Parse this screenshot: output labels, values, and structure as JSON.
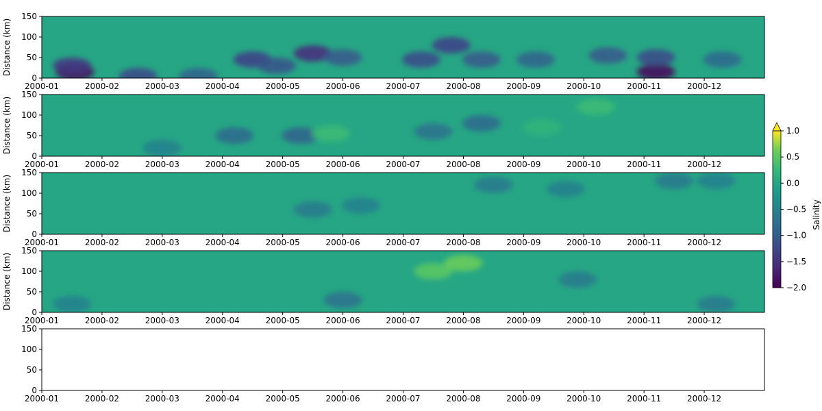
{
  "chart_data": {
    "type": "heatmap",
    "title": "",
    "xlabel": "",
    "x_ticks": [
      "2000-01",
      "2000-02",
      "2000-03",
      "2000-04",
      "2000-05",
      "2000-06",
      "2000-07",
      "2000-08",
      "2000-09",
      "2000-10",
      "2000-11",
      "2000-12"
    ],
    "x_tick_month_index": [
      0,
      1,
      2,
      3,
      4,
      5,
      6,
      7,
      8,
      9,
      10,
      11
    ],
    "x_range_months": [
      0,
      12
    ],
    "ylabel": "Distance (km)",
    "y_ticks": [
      0,
      50,
      100,
      150
    ],
    "y_range": [
      0,
      150
    ],
    "panels": [
      {
        "name": "panel-1",
        "has_data": true,
        "background_value": 0.0,
        "features": [
          {
            "month": 0.55,
            "km": 15,
            "value": -1.9
          },
          {
            "month": 0.5,
            "km": 30,
            "value": -1.4
          },
          {
            "month": 1.6,
            "km": 5,
            "value": -1.2
          },
          {
            "month": 2.6,
            "km": 5,
            "value": -0.9
          },
          {
            "month": 3.5,
            "km": 45,
            "value": -1.3
          },
          {
            "month": 3.9,
            "km": 30,
            "value": -1.1
          },
          {
            "month": 4.5,
            "km": 60,
            "value": -1.5
          },
          {
            "month": 5.0,
            "km": 50,
            "value": -1.0
          },
          {
            "month": 6.3,
            "km": 45,
            "value": -1.2
          },
          {
            "month": 6.8,
            "km": 80,
            "value": -1.3
          },
          {
            "month": 7.3,
            "km": 45,
            "value": -1.0
          },
          {
            "month": 8.2,
            "km": 45,
            "value": -0.9
          },
          {
            "month": 9.4,
            "km": 55,
            "value": -1.0
          },
          {
            "month": 10.2,
            "km": 15,
            "value": -1.9
          },
          {
            "month": 10.2,
            "km": 50,
            "value": -1.2
          },
          {
            "month": 11.3,
            "km": 45,
            "value": -0.8
          }
        ]
      },
      {
        "name": "panel-2",
        "has_data": true,
        "background_value": 0.0,
        "features": [
          {
            "month": 3.2,
            "km": 50,
            "value": -0.8
          },
          {
            "month": 4.3,
            "km": 50,
            "value": -0.9
          },
          {
            "month": 4.8,
            "km": 55,
            "value": 0.3
          },
          {
            "month": 6.5,
            "km": 60,
            "value": -0.7
          },
          {
            "month": 7.3,
            "km": 80,
            "value": -0.8
          },
          {
            "month": 8.3,
            "km": 70,
            "value": 0.2
          },
          {
            "month": 9.2,
            "km": 120,
            "value": 0.3
          },
          {
            "month": 2.0,
            "km": 20,
            "value": -0.5
          }
        ]
      },
      {
        "name": "panel-3",
        "has_data": true,
        "background_value": 0.0,
        "features": [
          {
            "month": 4.5,
            "km": 60,
            "value": -0.6
          },
          {
            "month": 5.3,
            "km": 70,
            "value": -0.5
          },
          {
            "month": 7.5,
            "km": 120,
            "value": -0.6
          },
          {
            "month": 8.7,
            "km": 110,
            "value": -0.5
          },
          {
            "month": 10.5,
            "km": 130,
            "value": -0.6
          },
          {
            "month": 11.2,
            "km": 130,
            "value": -0.5
          }
        ]
      },
      {
        "name": "panel-4",
        "has_data": true,
        "background_value": 0.0,
        "features": [
          {
            "month": 0.5,
            "km": 20,
            "value": -0.5
          },
          {
            "month": 5.0,
            "km": 30,
            "value": -0.7
          },
          {
            "month": 6.5,
            "km": 100,
            "value": 0.5
          },
          {
            "month": 7.0,
            "km": 120,
            "value": 0.6
          },
          {
            "month": 8.9,
            "km": 80,
            "value": -0.6
          },
          {
            "month": 11.2,
            "km": 20,
            "value": -0.6
          }
        ]
      },
      {
        "name": "panel-5",
        "has_data": false
      }
    ],
    "colorbar": {
      "label": "Salinity",
      "colormap": "viridis",
      "ticks": [
        "1.0",
        "0.5",
        "0.0",
        "−0.5",
        "−1.0",
        "−1.5",
        "−2.0"
      ],
      "range": [
        -2.0,
        1.0
      ],
      "extend": "max"
    }
  }
}
